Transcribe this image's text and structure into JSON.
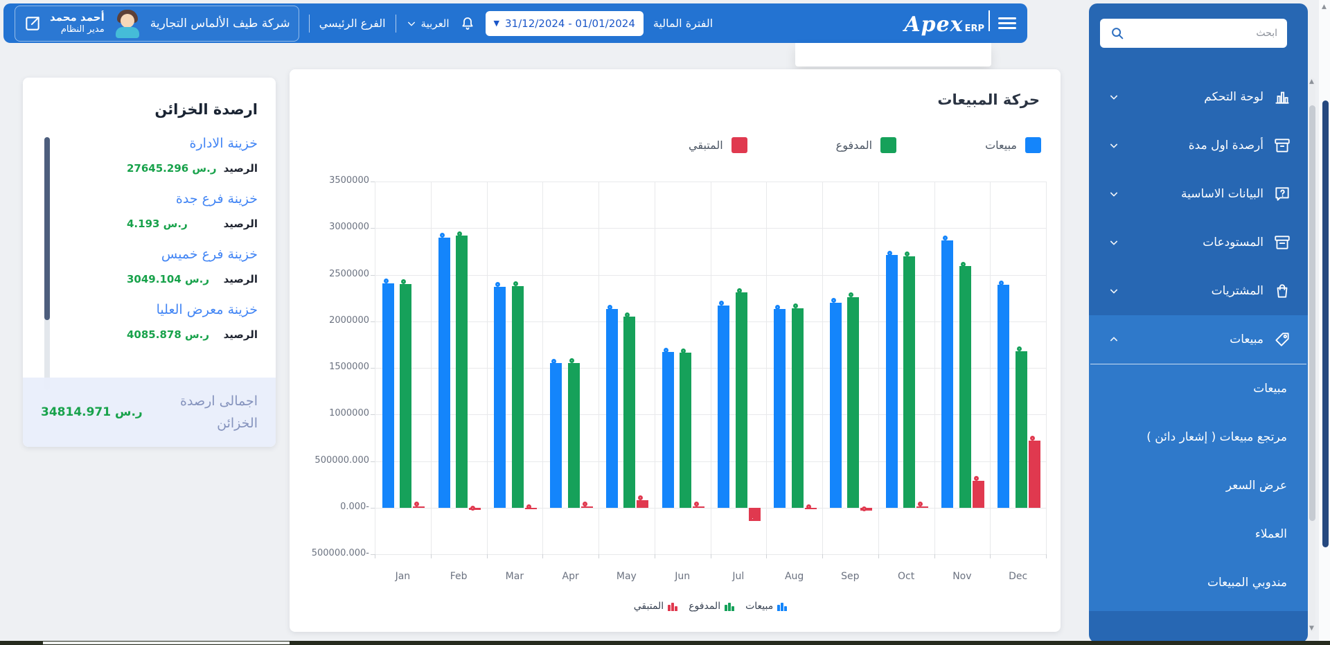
{
  "topbar": {
    "user": {
      "name": "أحمد محمد",
      "role": "مدير النظام"
    },
    "company": "شركة طيف الألماس التجارية",
    "branch": "الفرع الرئيسي",
    "language": "العربية",
    "period_label": "الفترة المالية",
    "date_range": "31/12/2024 - 01/01/2024",
    "logo_main": "Apex",
    "logo_sub": "ERP"
  },
  "sidebar": {
    "search_placeholder": "ابحث",
    "items": [
      {
        "label": "لوحة التحكم",
        "icon": "dashboard-icon"
      },
      {
        "label": "أرصدة اول مدة",
        "icon": "opening-balances-icon"
      },
      {
        "label": "البيانات الاساسية",
        "icon": "basic-data-icon"
      },
      {
        "label": "المستودعات",
        "icon": "warehouses-icon"
      },
      {
        "label": "المشتريات",
        "icon": "purchases-icon"
      }
    ],
    "active_item": {
      "label": "مبيعات",
      "icon": "tag-icon"
    },
    "submenu": [
      "مبيعات",
      "مرتجع مبيعات ( إشعار دائن )",
      "عرض السعر",
      "العملاء",
      "مندوبي المبيعات"
    ]
  },
  "treasury": {
    "title": "ارصدة الخزائن",
    "balance_label": "الرصيد",
    "items": [
      {
        "name": "خزينة الادارة",
        "value": "27645.296 ر.س"
      },
      {
        "name": "خزينة فرع جدة",
        "value": "4.193 ر.س"
      },
      {
        "name": "خزينة فرع خميس",
        "value": "3049.104 ر.س"
      },
      {
        "name": "خزينة معرض العليا",
        "value": "4085.878 ر.س"
      }
    ],
    "total_label": "اجمالى ارصدة الخزائن",
    "total_value": "34814.971 ر.س"
  },
  "chart_card": {
    "title": "حركة المبيعات"
  },
  "chart_data": {
    "type": "bar",
    "title": "حركة المبيعات",
    "categories": [
      "Jan",
      "Feb",
      "Mar",
      "Apr",
      "May",
      "Jun",
      "Jul",
      "Aug",
      "Sep",
      "Oct",
      "Nov",
      "Dec"
    ],
    "series": [
      {
        "name": "مبيعات",
        "color": "#1485fb",
        "values": [
          2410000,
          2900000,
          2370000,
          1550000,
          2130000,
          1670000,
          2170000,
          2130000,
          2200000,
          2710000,
          2870000,
          2390000
        ]
      },
      {
        "name": "المدفوع",
        "color": "#16a15a",
        "values": [
          2400000,
          2920000,
          2380000,
          1555000,
          2050000,
          1660000,
          2310000,
          2140000,
          2260000,
          2700000,
          2590000,
          1680000
        ]
      },
      {
        "name": "المتبقي",
        "color": "#e0394f",
        "values": [
          15000,
          -25000,
          -15000,
          5000,
          80000,
          10000,
          -140000,
          -10000,
          -35000,
          15000,
          290000,
          720000
        ]
      }
    ],
    "y_ticks": [
      {
        "value": 3500000,
        "label": "3500000"
      },
      {
        "value": 3000000,
        "label": "3000000"
      },
      {
        "value": 2500000,
        "label": "2500000"
      },
      {
        "value": 2000000,
        "label": "2000000"
      },
      {
        "value": 1500000,
        "label": "1500000"
      },
      {
        "value": 1000000,
        "label": "1000000"
      },
      {
        "value": 500000,
        "label": "500000.000"
      },
      {
        "value": 0,
        "label": "0.000-"
      },
      {
        "value": -500000,
        "label": "500000.000-"
      }
    ],
    "ylim": [
      -500000,
      3500000
    ],
    "grid": true,
    "legend_position": "top"
  }
}
